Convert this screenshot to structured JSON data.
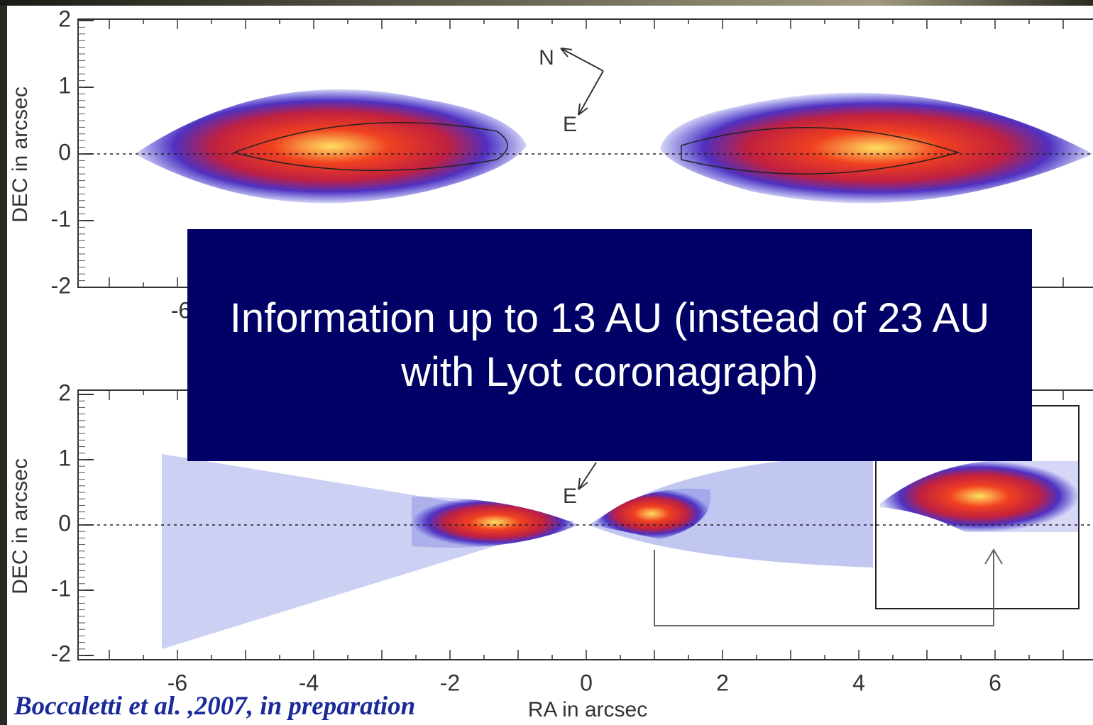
{
  "panels": [
    {
      "ylabel": "DEC in arcsec",
      "yticks": [
        "2",
        "1",
        "0",
        "-1",
        "-2"
      ],
      "compass": [
        "N",
        "E"
      ],
      "xtick_fragment": "-6"
    },
    {
      "ylabel": "DEC in arcsec",
      "yticks": [
        "2",
        "1",
        "0",
        "-1",
        "-2"
      ],
      "compass": [
        "E"
      ]
    }
  ],
  "xticks": [
    "-6",
    "-4",
    "-2",
    "0",
    "2",
    "4",
    "6"
  ],
  "xlabel": "RA in arcsec",
  "overlay": "Information up to 13 AU (instead of 23 AU with Lyot coronagraph)",
  "citation": "Boccaletti et al. ,2007, in preparation"
}
